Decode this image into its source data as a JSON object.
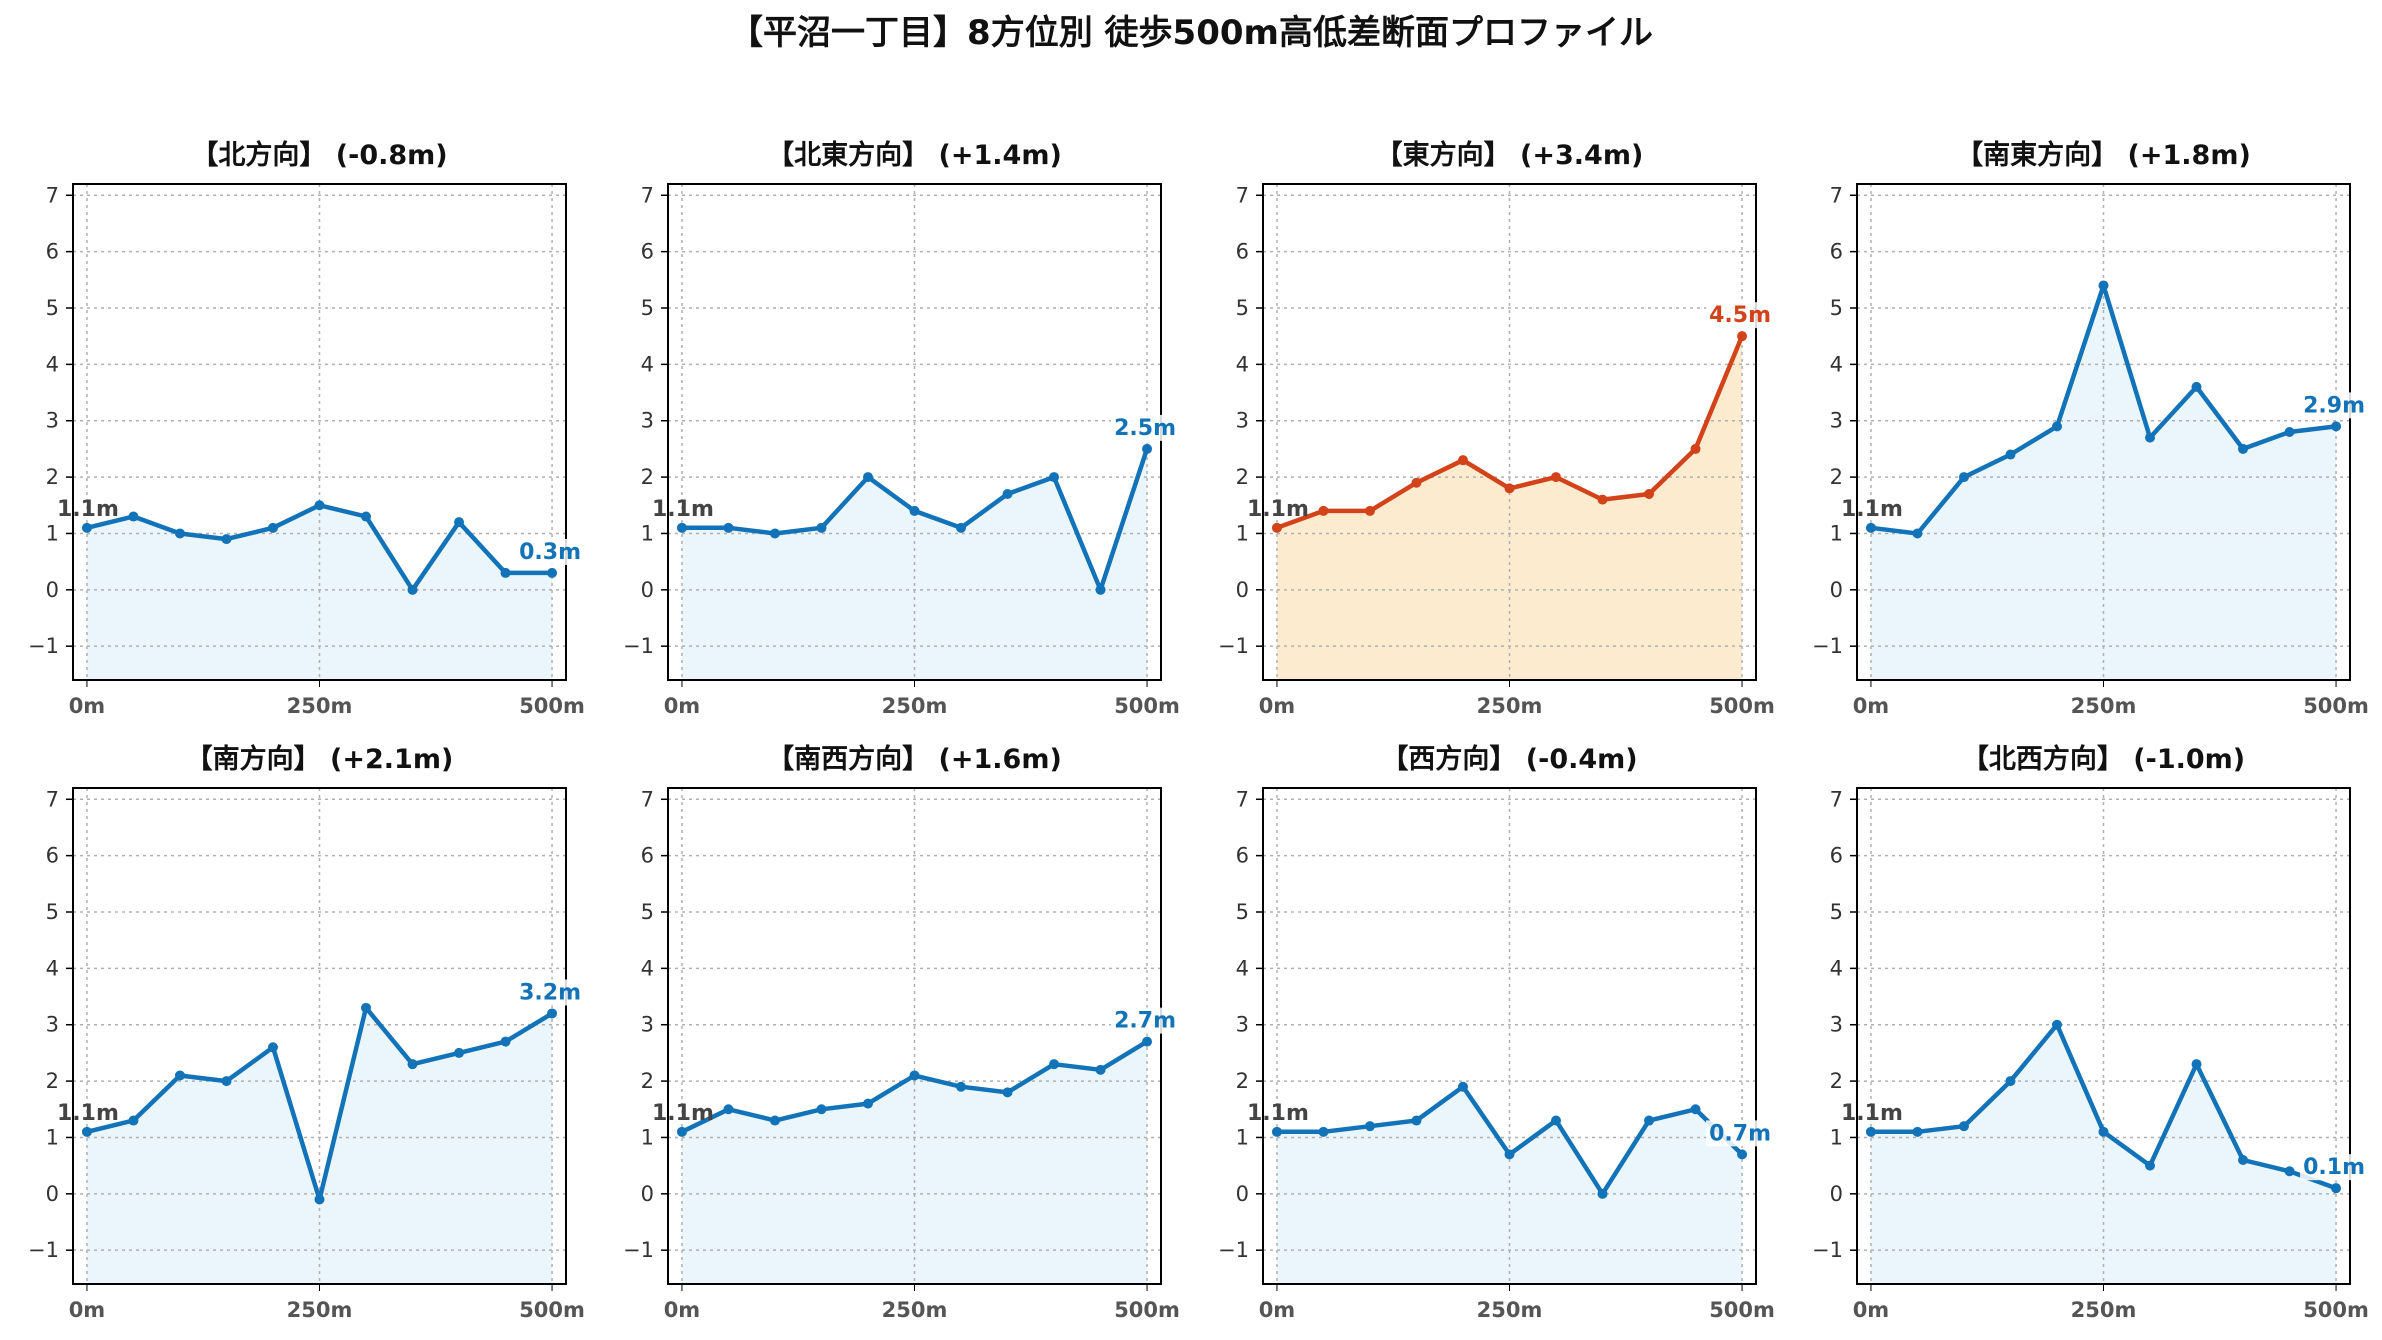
{
  "title": "【平沼一丁目】8方位別 徒歩500m高低差断面プロファイル",
  "colors": {
    "normal_line": "#1273b8",
    "normal_fill": "#eaf6fb",
    "highlight_line": "#d2431a",
    "highlight_fill": "#fdebd0",
    "start_label": "#444444"
  },
  "chart_data": [
    {
      "type": "area",
      "title": "【北方向】 (-0.8m)",
      "x": [
        0,
        50,
        100,
        150,
        200,
        250,
        300,
        350,
        400,
        450,
        500
      ],
      "values": [
        1.1,
        1.3,
        1.0,
        0.9,
        1.1,
        1.5,
        1.3,
        0.0,
        1.2,
        0.3,
        0.3
      ],
      "start_label": "1.1m",
      "end_label": "0.3m",
      "highlight": false,
      "xticks": [
        0,
        250,
        500
      ],
      "xtick_labels": [
        "0m",
        "250m",
        "500m"
      ],
      "yticks": [
        -1,
        0,
        1,
        2,
        3,
        4,
        5,
        6,
        7
      ],
      "ytick_labels": [
        "−1",
        "0",
        "1",
        "2",
        "3",
        "4",
        "5",
        "6",
        "7"
      ],
      "xlim": [
        -15,
        515
      ],
      "ylim": [
        -1.6,
        7.2
      ],
      "grid": true
    },
    {
      "type": "area",
      "title": "【北東方向】 (+1.4m)",
      "x": [
        0,
        50,
        100,
        150,
        200,
        250,
        300,
        350,
        400,
        450,
        500
      ],
      "values": [
        1.1,
        1.1,
        1.0,
        1.1,
        2.0,
        1.4,
        1.1,
        1.7,
        2.0,
        0.0,
        2.5
      ],
      "start_label": "1.1m",
      "end_label": "2.5m",
      "highlight": false,
      "xticks": [
        0,
        250,
        500
      ],
      "xtick_labels": [
        "0m",
        "250m",
        "500m"
      ],
      "yticks": [
        -1,
        0,
        1,
        2,
        3,
        4,
        5,
        6,
        7
      ],
      "ytick_labels": [
        "−1",
        "0",
        "1",
        "2",
        "3",
        "4",
        "5",
        "6",
        "7"
      ],
      "xlim": [
        -15,
        515
      ],
      "ylim": [
        -1.6,
        7.2
      ],
      "grid": true
    },
    {
      "type": "area",
      "title": "【東方向】 (+3.4m)",
      "x": [
        0,
        50,
        100,
        150,
        200,
        250,
        300,
        350,
        400,
        450,
        500
      ],
      "values": [
        1.1,
        1.4,
        1.4,
        1.9,
        2.3,
        1.8,
        2.0,
        1.6,
        1.7,
        2.5,
        4.5
      ],
      "start_label": "1.1m",
      "end_label": "4.5m",
      "highlight": true,
      "xticks": [
        0,
        250,
        500
      ],
      "xtick_labels": [
        "0m",
        "250m",
        "500m"
      ],
      "yticks": [
        -1,
        0,
        1,
        2,
        3,
        4,
        5,
        6,
        7
      ],
      "ytick_labels": [
        "−1",
        "0",
        "1",
        "2",
        "3",
        "4",
        "5",
        "6",
        "7"
      ],
      "xlim": [
        -15,
        515
      ],
      "ylim": [
        -1.6,
        7.2
      ],
      "grid": true
    },
    {
      "type": "area",
      "title": "【南東方向】 (+1.8m)",
      "x": [
        0,
        50,
        100,
        150,
        200,
        250,
        300,
        350,
        400,
        450,
        500
      ],
      "values": [
        1.1,
        1.0,
        2.0,
        2.4,
        2.9,
        5.4,
        2.7,
        3.6,
        2.5,
        2.8,
        2.9
      ],
      "start_label": "1.1m",
      "end_label": "2.9m",
      "highlight": false,
      "xticks": [
        0,
        250,
        500
      ],
      "xtick_labels": [
        "0m",
        "250m",
        "500m"
      ],
      "yticks": [
        -1,
        0,
        1,
        2,
        3,
        4,
        5,
        6,
        7
      ],
      "ytick_labels": [
        "−1",
        "0",
        "1",
        "2",
        "3",
        "4",
        "5",
        "6",
        "7"
      ],
      "xlim": [
        -15,
        515
      ],
      "ylim": [
        -1.6,
        7.2
      ],
      "grid": true
    },
    {
      "type": "area",
      "title": "【南方向】 (+2.1m)",
      "x": [
        0,
        50,
        100,
        150,
        200,
        250,
        300,
        350,
        400,
        450,
        500
      ],
      "values": [
        1.1,
        1.3,
        2.1,
        2.0,
        2.6,
        -0.1,
        3.3,
        2.3,
        2.5,
        2.7,
        3.2
      ],
      "start_label": "1.1m",
      "end_label": "3.2m",
      "highlight": false,
      "xticks": [
        0,
        250,
        500
      ],
      "xtick_labels": [
        "0m",
        "250m",
        "500m"
      ],
      "yticks": [
        -1,
        0,
        1,
        2,
        3,
        4,
        5,
        6,
        7
      ],
      "ytick_labels": [
        "−1",
        "0",
        "1",
        "2",
        "3",
        "4",
        "5",
        "6",
        "7"
      ],
      "xlim": [
        -15,
        515
      ],
      "ylim": [
        -1.6,
        7.2
      ],
      "grid": true
    },
    {
      "type": "area",
      "title": "【南西方向】 (+1.6m)",
      "x": [
        0,
        50,
        100,
        150,
        200,
        250,
        300,
        350,
        400,
        450,
        500
      ],
      "values": [
        1.1,
        1.5,
        1.3,
        1.5,
        1.6,
        2.1,
        1.9,
        1.8,
        2.3,
        2.2,
        2.7
      ],
      "start_label": "1.1m",
      "end_label": "2.7m",
      "highlight": false,
      "xticks": [
        0,
        250,
        500
      ],
      "xtick_labels": [
        "0m",
        "250m",
        "500m"
      ],
      "yticks": [
        -1,
        0,
        1,
        2,
        3,
        4,
        5,
        6,
        7
      ],
      "ytick_labels": [
        "−1",
        "0",
        "1",
        "2",
        "3",
        "4",
        "5",
        "6",
        "7"
      ],
      "xlim": [
        -15,
        515
      ],
      "ylim": [
        -1.6,
        7.2
      ],
      "grid": true
    },
    {
      "type": "area",
      "title": "【西方向】 (-0.4m)",
      "x": [
        0,
        50,
        100,
        150,
        200,
        250,
        300,
        350,
        400,
        450,
        500
      ],
      "values": [
        1.1,
        1.1,
        1.2,
        1.3,
        1.9,
        0.7,
        1.3,
        0.0,
        1.3,
        1.5,
        0.7
      ],
      "start_label": "1.1m",
      "end_label": "0.7m",
      "highlight": false,
      "xticks": [
        0,
        250,
        500
      ],
      "xtick_labels": [
        "0m",
        "250m",
        "500m"
      ],
      "yticks": [
        -1,
        0,
        1,
        2,
        3,
        4,
        5,
        6,
        7
      ],
      "ytick_labels": [
        "−1",
        "0",
        "1",
        "2",
        "3",
        "4",
        "5",
        "6",
        "7"
      ],
      "xlim": [
        -15,
        515
      ],
      "ylim": [
        -1.6,
        7.2
      ],
      "grid": true
    },
    {
      "type": "area",
      "title": "【北西方向】 (-1.0m)",
      "x": [
        0,
        50,
        100,
        150,
        200,
        250,
        300,
        350,
        400,
        450,
        500
      ],
      "values": [
        1.1,
        1.1,
        1.2,
        2.0,
        3.0,
        1.1,
        0.5,
        2.3,
        0.6,
        0.4,
        0.1
      ],
      "start_label": "1.1m",
      "end_label": "0.1m",
      "highlight": false,
      "xticks": [
        0,
        250,
        500
      ],
      "xtick_labels": [
        "0m",
        "250m",
        "500m"
      ],
      "yticks": [
        -1,
        0,
        1,
        2,
        3,
        4,
        5,
        6,
        7
      ],
      "ytick_labels": [
        "−1",
        "0",
        "1",
        "2",
        "3",
        "4",
        "5",
        "6",
        "7"
      ],
      "xlim": [
        -15,
        515
      ],
      "ylim": [
        -1.6,
        7.2
      ],
      "grid": true
    }
  ]
}
